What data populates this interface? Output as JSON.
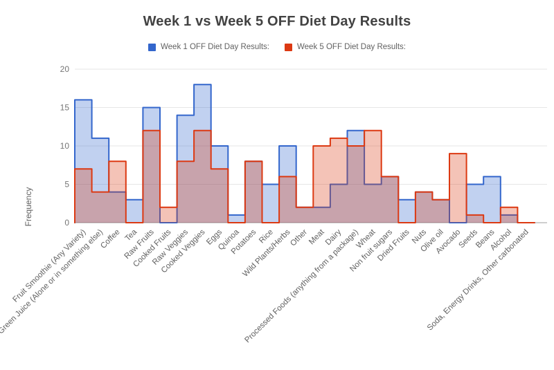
{
  "chart_data": {
    "type": "area",
    "variant": "stepped-area",
    "title": "Week 1 vs Week 5 OFF Diet Day Results",
    "xlabel": "",
    "ylabel": "Frequency",
    "ylim": [
      0,
      20
    ],
    "yticks": [
      0,
      5,
      10,
      15,
      20
    ],
    "grid": true,
    "legend_position": "top",
    "categories": [
      "Fruit Smoothie (Any Variety)",
      "Green Juice (Alone or in something else)",
      "Coffee",
      "Tea",
      "Raw Fruits",
      "Cooked Fruits",
      "Raw Veggies",
      "Cooked Veggies",
      "Eggs",
      "Quinoa",
      "Potatoes",
      "Rice",
      "Wild Plants/Herbs",
      "Other",
      "Meat",
      "Dairy",
      "Processed Foods (anything from a package)",
      "Wheat",
      "Non fruit sugars",
      "Dried Fruits",
      "Nuts",
      "Olive oil",
      "Avocado",
      "Seeds",
      "Beans",
      "Alcohol",
      "Soda, Energy Drinks, Other carbonated"
    ],
    "series": [
      {
        "name": "Week 1 OFF Diet Day Results:",
        "color": "#3366cc",
        "fill": "rgba(51,102,204,0.3)",
        "values": [
          16,
          11,
          4,
          3,
          15,
          0,
          14,
          18,
          10,
          1,
          8,
          5,
          10,
          2,
          2,
          5,
          12,
          5,
          6,
          3,
          4,
          3,
          0,
          5,
          6,
          1,
          0
        ]
      },
      {
        "name": "Week 5 OFF Diet Day Results:",
        "color": "#dc3912",
        "fill": "rgba(220,57,18,0.3)",
        "values": [
          7,
          4,
          8,
          0,
          12,
          2,
          8,
          12,
          7,
          0,
          8,
          0,
          6,
          2,
          10,
          11,
          10,
          12,
          6,
          0,
          4,
          3,
          9,
          1,
          0,
          2,
          0
        ]
      }
    ]
  },
  "axis_colors": {
    "gridline": "#e6e6e6",
    "baseline": "#9e9e9e",
    "tick_text": "#757575",
    "category_text": "#616161"
  }
}
